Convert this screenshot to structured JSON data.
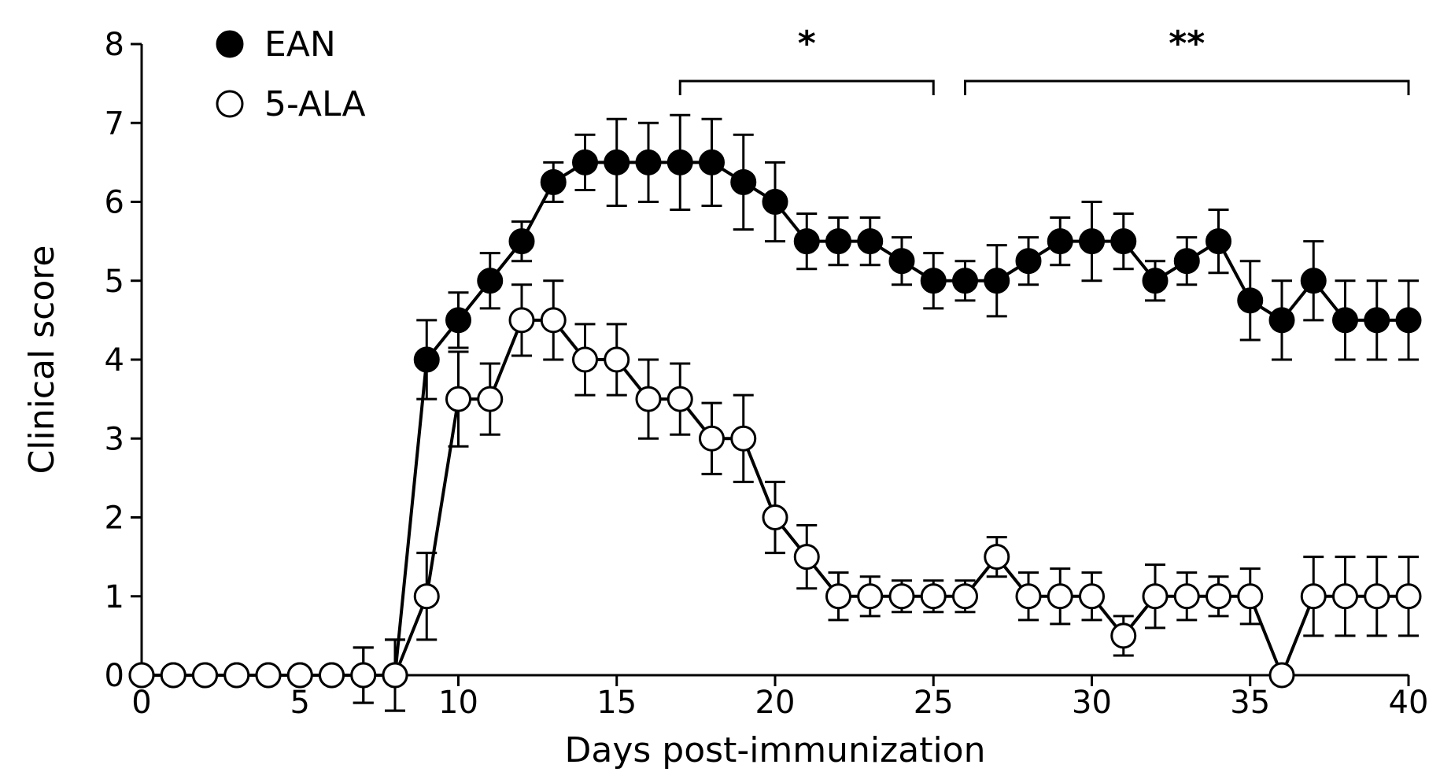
{
  "chart_data": {
    "type": "line",
    "title": "",
    "xlabel": "Days post-immunization",
    "ylabel": "Clinical score",
    "xlim": [
      0,
      40
    ],
    "ylim": [
      0,
      8
    ],
    "x_ticks": [
      0,
      5,
      10,
      15,
      20,
      25,
      30,
      35,
      40
    ],
    "y_ticks": [
      0,
      1,
      2,
      3,
      4,
      5,
      6,
      7,
      8
    ],
    "grid": false,
    "legend_position": "top-left",
    "x": [
      0,
      1,
      2,
      3,
      4,
      5,
      6,
      7,
      8,
      9,
      10,
      11,
      12,
      13,
      14,
      15,
      16,
      17,
      18,
      19,
      20,
      21,
      22,
      23,
      24,
      25,
      26,
      27,
      28,
      29,
      30,
      31,
      32,
      33,
      34,
      35,
      36,
      37,
      38,
      39,
      40
    ],
    "series": [
      {
        "name": "EAN",
        "marker": "filled-circle",
        "color": "#000000",
        "values": [
          0,
          0,
          0,
          0,
          0,
          0,
          0,
          0,
          0,
          4.0,
          4.5,
          5.0,
          5.5,
          6.25,
          6.5,
          6.5,
          6.5,
          6.5,
          6.5,
          6.25,
          6.0,
          5.5,
          5.5,
          5.5,
          5.25,
          5.0,
          5.0,
          5.0,
          5.25,
          5.5,
          5.5,
          5.5,
          5.0,
          5.25,
          5.5,
          4.75,
          4.5,
          5.0,
          4.5,
          4.5,
          4.5
        ],
        "errors": [
          0,
          0,
          0,
          0,
          0,
          0,
          0,
          0.35,
          0.45,
          0.5,
          0.35,
          0.35,
          0.25,
          0.25,
          0.35,
          0.55,
          0.5,
          0.6,
          0.55,
          0.6,
          0.5,
          0.35,
          0.3,
          0.3,
          0.3,
          0.35,
          0.25,
          0.45,
          0.3,
          0.3,
          0.5,
          0.35,
          0.25,
          0.3,
          0.4,
          0.5,
          0.5,
          0.5,
          0.5,
          0.5,
          0.5
        ]
      },
      {
        "name": "5-ALA",
        "marker": "open-circle",
        "color": "#ffffff",
        "values": [
          0,
          0,
          0,
          0,
          0,
          0,
          0,
          0,
          0,
          1.0,
          3.5,
          3.5,
          4.5,
          4.5,
          4.0,
          4.0,
          3.5,
          3.5,
          3.0,
          3.0,
          2.0,
          1.5,
          1.0,
          1.0,
          1.0,
          1.0,
          1.0,
          1.5,
          1.0,
          1.0,
          1.0,
          0.5,
          1.0,
          1.0,
          1.0,
          1.0,
          0,
          1.0,
          1.0,
          1.0,
          1.0
        ],
        "errors": [
          0,
          0,
          0,
          0,
          0,
          0,
          0,
          0.35,
          0.45,
          0.55,
          0.6,
          0.45,
          0.45,
          0.5,
          0.45,
          0.45,
          0.5,
          0.45,
          0.45,
          0.55,
          0.45,
          0.4,
          0.3,
          0.25,
          0.2,
          0.2,
          0.2,
          0.25,
          0.3,
          0.35,
          0.3,
          0.25,
          0.4,
          0.3,
          0.25,
          0.35,
          0,
          0.5,
          0.5,
          0.5,
          0.5
        ]
      }
    ],
    "annotations": [
      {
        "label": "*",
        "x_start": 17,
        "x_end": 25
      },
      {
        "label": "**",
        "x_start": 26,
        "x_end": 40
      }
    ]
  }
}
